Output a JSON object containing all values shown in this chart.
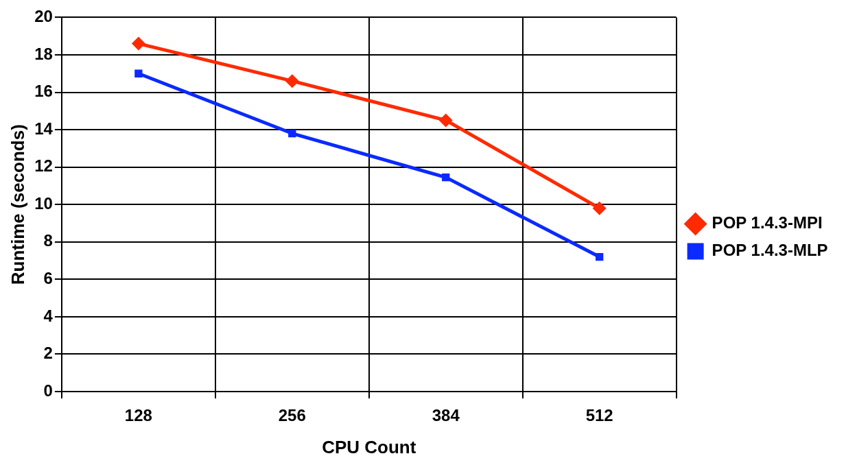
{
  "chart_data": {
    "type": "line",
    "xlabel": "CPU Count",
    "ylabel": "Runtime (seconds)",
    "categories": [
      "128",
      "256",
      "384",
      "512"
    ],
    "series": [
      {
        "name": "POP 1.4.3-MPI",
        "color": "#ff2a00",
        "marker": "diamond",
        "values": [
          18.6,
          16.6,
          14.5,
          9.8
        ]
      },
      {
        "name": "POP 1.4.3-MLP",
        "color": "#0a2aff",
        "marker": "square",
        "values": [
          17.0,
          13.8,
          11.45,
          7.2
        ]
      }
    ],
    "ylim": [
      0,
      20
    ],
    "yticks": [
      0,
      2,
      4,
      6,
      8,
      10,
      12,
      14,
      16,
      18,
      20
    ],
    "grid": true,
    "legend": "right"
  }
}
